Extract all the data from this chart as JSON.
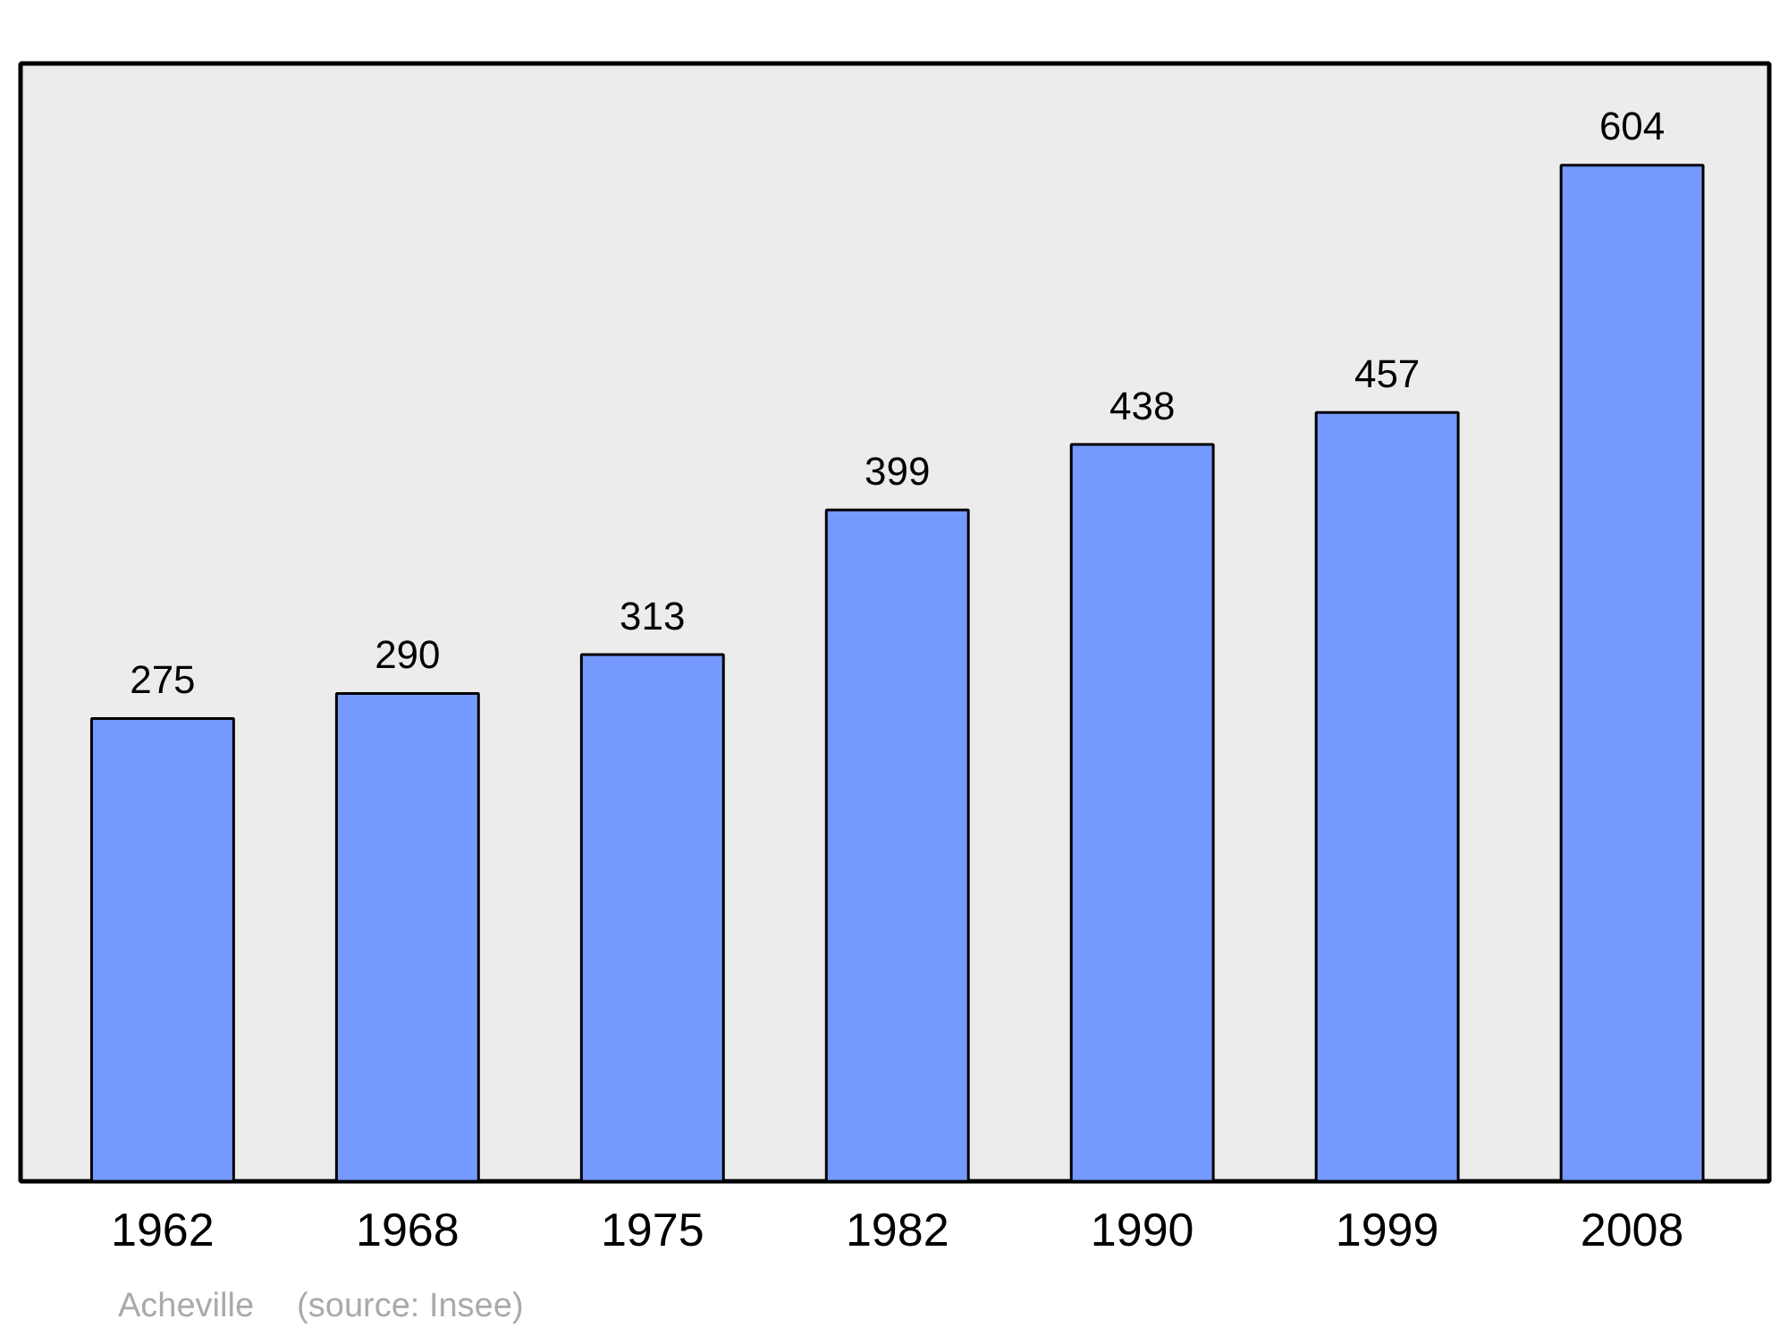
{
  "chart_data": {
    "type": "bar",
    "categories": [
      "1962",
      "1968",
      "1975",
      "1982",
      "1990",
      "1999",
      "2008"
    ],
    "values": [
      275,
      290,
      313,
      399,
      438,
      457,
      604
    ],
    "color": "#7599ff",
    "data_labels": true,
    "grid": false,
    "annotations": [
      "Acheville",
      "(source: Insee)"
    ]
  }
}
